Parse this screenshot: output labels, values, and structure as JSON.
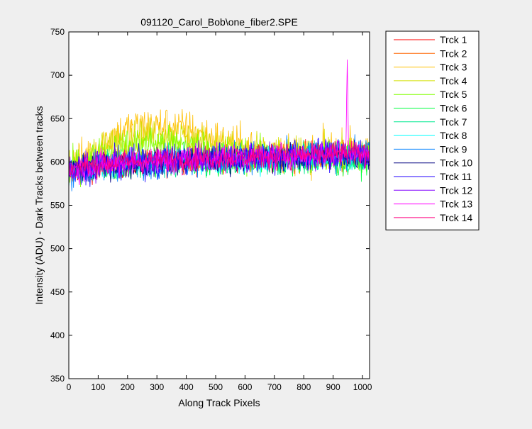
{
  "chart_data": {
    "type": "line",
    "title": "091120_Carol_Bob\\one_fiber2.SPE",
    "xlabel": "Along Track Pixels",
    "ylabel": "Intensity (ADU) - Dark Tracks between tracks",
    "xlim": [
      0,
      1024
    ],
    "ylim": [
      350,
      750
    ],
    "xticks": [
      0,
      100,
      200,
      300,
      400,
      500,
      600,
      700,
      800,
      900,
      1000
    ],
    "yticks": [
      350,
      400,
      450,
      500,
      550,
      600,
      650,
      700,
      750
    ],
    "grid": false,
    "legend_position": "outside-right",
    "x_samples": [
      0,
      50,
      100,
      150,
      200,
      250,
      300,
      350,
      400,
      450,
      500,
      550,
      600,
      650,
      700,
      750,
      800,
      850,
      900,
      950,
      1000,
      1024
    ],
    "series": [
      {
        "name": "Trck 1",
        "color": "#ff0000",
        "noise": 8,
        "values": [
          590,
          593,
          595,
          597,
          598,
          599,
          600,
          601,
          602,
          603,
          603,
          604,
          604,
          605,
          605,
          606,
          606,
          607,
          607,
          608,
          609,
          609
        ]
      },
      {
        "name": "Trck 2",
        "color": "#ff6600",
        "noise": 8,
        "values": [
          591,
          594,
          596,
          598,
          599,
          600,
          601,
          602,
          602,
          603,
          604,
          604,
          605,
          605,
          606,
          606,
          607,
          607,
          608,
          608,
          609,
          609
        ]
      },
      {
        "name": "Trck 3",
        "color": "#ffc000",
        "noise": 12,
        "values": [
          594,
          604,
          618,
          630,
          637,
          640,
          641,
          640,
          637,
          632,
          626,
          620,
          616,
          613,
          611,
          610,
          609,
          610,
          612,
          614,
          612,
          611
        ]
      },
      {
        "name": "Trck 4",
        "color": "#d4e000",
        "noise": 10,
        "values": [
          593,
          602,
          612,
          621,
          627,
          630,
          631,
          630,
          628,
          624,
          620,
          616,
          613,
          611,
          610,
          609,
          609,
          610,
          611,
          613,
          611,
          610
        ]
      },
      {
        "name": "Trck 5",
        "color": "#80ff00",
        "noise": 10,
        "values": [
          592,
          599,
          607,
          614,
          619,
          621,
          622,
          621,
          619,
          616,
          613,
          610,
          608,
          607,
          606,
          605,
          605,
          606,
          607,
          608,
          606,
          605
        ]
      },
      {
        "name": "Trck 6",
        "color": "#00ff40",
        "noise": 8,
        "values": [
          588,
          590,
          592,
          594,
          595,
          596,
          597,
          598,
          598,
          599,
          599,
          600,
          600,
          600,
          600,
          600,
          600,
          600,
          600,
          600,
          601,
          601
        ]
      },
      {
        "name": "Trck 7",
        "color": "#00e890",
        "noise": 8,
        "values": [
          589,
          592,
          594,
          596,
          597,
          598,
          599,
          600,
          600,
          601,
          601,
          602,
          602,
          603,
          603,
          603,
          604,
          604,
          605,
          605,
          606,
          606
        ]
      },
      {
        "name": "Trck 8",
        "color": "#00ffff",
        "noise": 8,
        "values": [
          589,
          592,
          594,
          596,
          597,
          598,
          599,
          600,
          601,
          601,
          602,
          602,
          603,
          603,
          604,
          604,
          605,
          605,
          606,
          606,
          607,
          607
        ]
      },
      {
        "name": "Trck 9",
        "color": "#0080ff",
        "noise": 9,
        "values": [
          590,
          593,
          595,
          597,
          598,
          599,
          600,
          601,
          602,
          603,
          604,
          604,
          605,
          606,
          606,
          607,
          607,
          608,
          609,
          609,
          610,
          610
        ]
      },
      {
        "name": "Trck 10",
        "color": "#000080",
        "noise": 8,
        "values": [
          590,
          592,
          594,
          596,
          597,
          598,
          599,
          600,
          601,
          602,
          602,
          603,
          603,
          604,
          604,
          605,
          605,
          606,
          606,
          607,
          607,
          607
        ]
      },
      {
        "name": "Trck 11",
        "color": "#2000ff",
        "noise": 9,
        "values": [
          591,
          594,
          596,
          598,
          599,
          600,
          601,
          602,
          603,
          603,
          604,
          605,
          605,
          606,
          606,
          607,
          607,
          608,
          608,
          609,
          610,
          610
        ]
      },
      {
        "name": "Trck 12",
        "color": "#8000ff",
        "noise": 8,
        "values": [
          591,
          594,
          596,
          598,
          599,
          600,
          601,
          602,
          603,
          604,
          604,
          605,
          605,
          606,
          606,
          607,
          607,
          608,
          608,
          609,
          609,
          609
        ]
      },
      {
        "name": "Trck 13",
        "color": "#ff00ff",
        "noise": 8,
        "values": [
          591,
          594,
          596,
          598,
          599,
          600,
          601,
          602,
          603,
          604,
          604,
          605,
          605,
          606,
          607,
          607,
          608,
          608,
          609,
          609,
          610,
          610
        ],
        "spike": {
          "x": 948,
          "value": 720
        }
      },
      {
        "name": "Trck 14",
        "color": "#ff0080",
        "noise": 7,
        "values": [
          592,
          595,
          597,
          599,
          600,
          601,
          602,
          603,
          604,
          604,
          605,
          605,
          606,
          606,
          607,
          607,
          608,
          608,
          609,
          609,
          610,
          610
        ]
      }
    ]
  }
}
